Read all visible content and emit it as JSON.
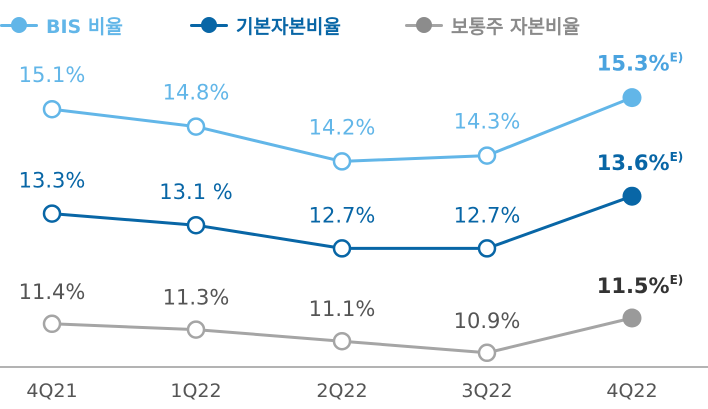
{
  "chart_data": {
    "type": "line",
    "categories": [
      "4Q21",
      "1Q22",
      "2Q22",
      "3Q22",
      "4Q22"
    ],
    "highlight_category_index": 4,
    "estimate_marker": "E)",
    "series": [
      {
        "name": "BIS 비율",
        "color": "#62b6e8",
        "values": [
          15.1,
          14.8,
          14.2,
          14.3,
          15.3
        ],
        "labels": [
          "15.1%",
          "14.8%",
          "14.2%",
          "14.3%",
          "15.3%"
        ]
      },
      {
        "name": "기본자본비율",
        "color": "#0866a6",
        "values": [
          13.3,
          13.1,
          12.7,
          12.7,
          13.6
        ],
        "labels": [
          "13.3%",
          "13.1 %",
          "12.7%",
          "12.7%",
          "13.6%"
        ]
      },
      {
        "name": "보통주 자본비율",
        "color": "#a5a5a5",
        "values": [
          11.4,
          11.3,
          11.1,
          10.9,
          11.5
        ],
        "labels": [
          "11.4%",
          "11.3%",
          "11.1%",
          "10.9%",
          "11.5%"
        ]
      }
    ],
    "legend_position": "top",
    "grid": false
  },
  "colors": {
    "highlight_tick": "#4aa3df",
    "highlight_label_bis": "#4aa3df",
    "highlight_label_common": "#333333",
    "normal_label_common": "#555555",
    "axis": "#9a9a9a"
  }
}
